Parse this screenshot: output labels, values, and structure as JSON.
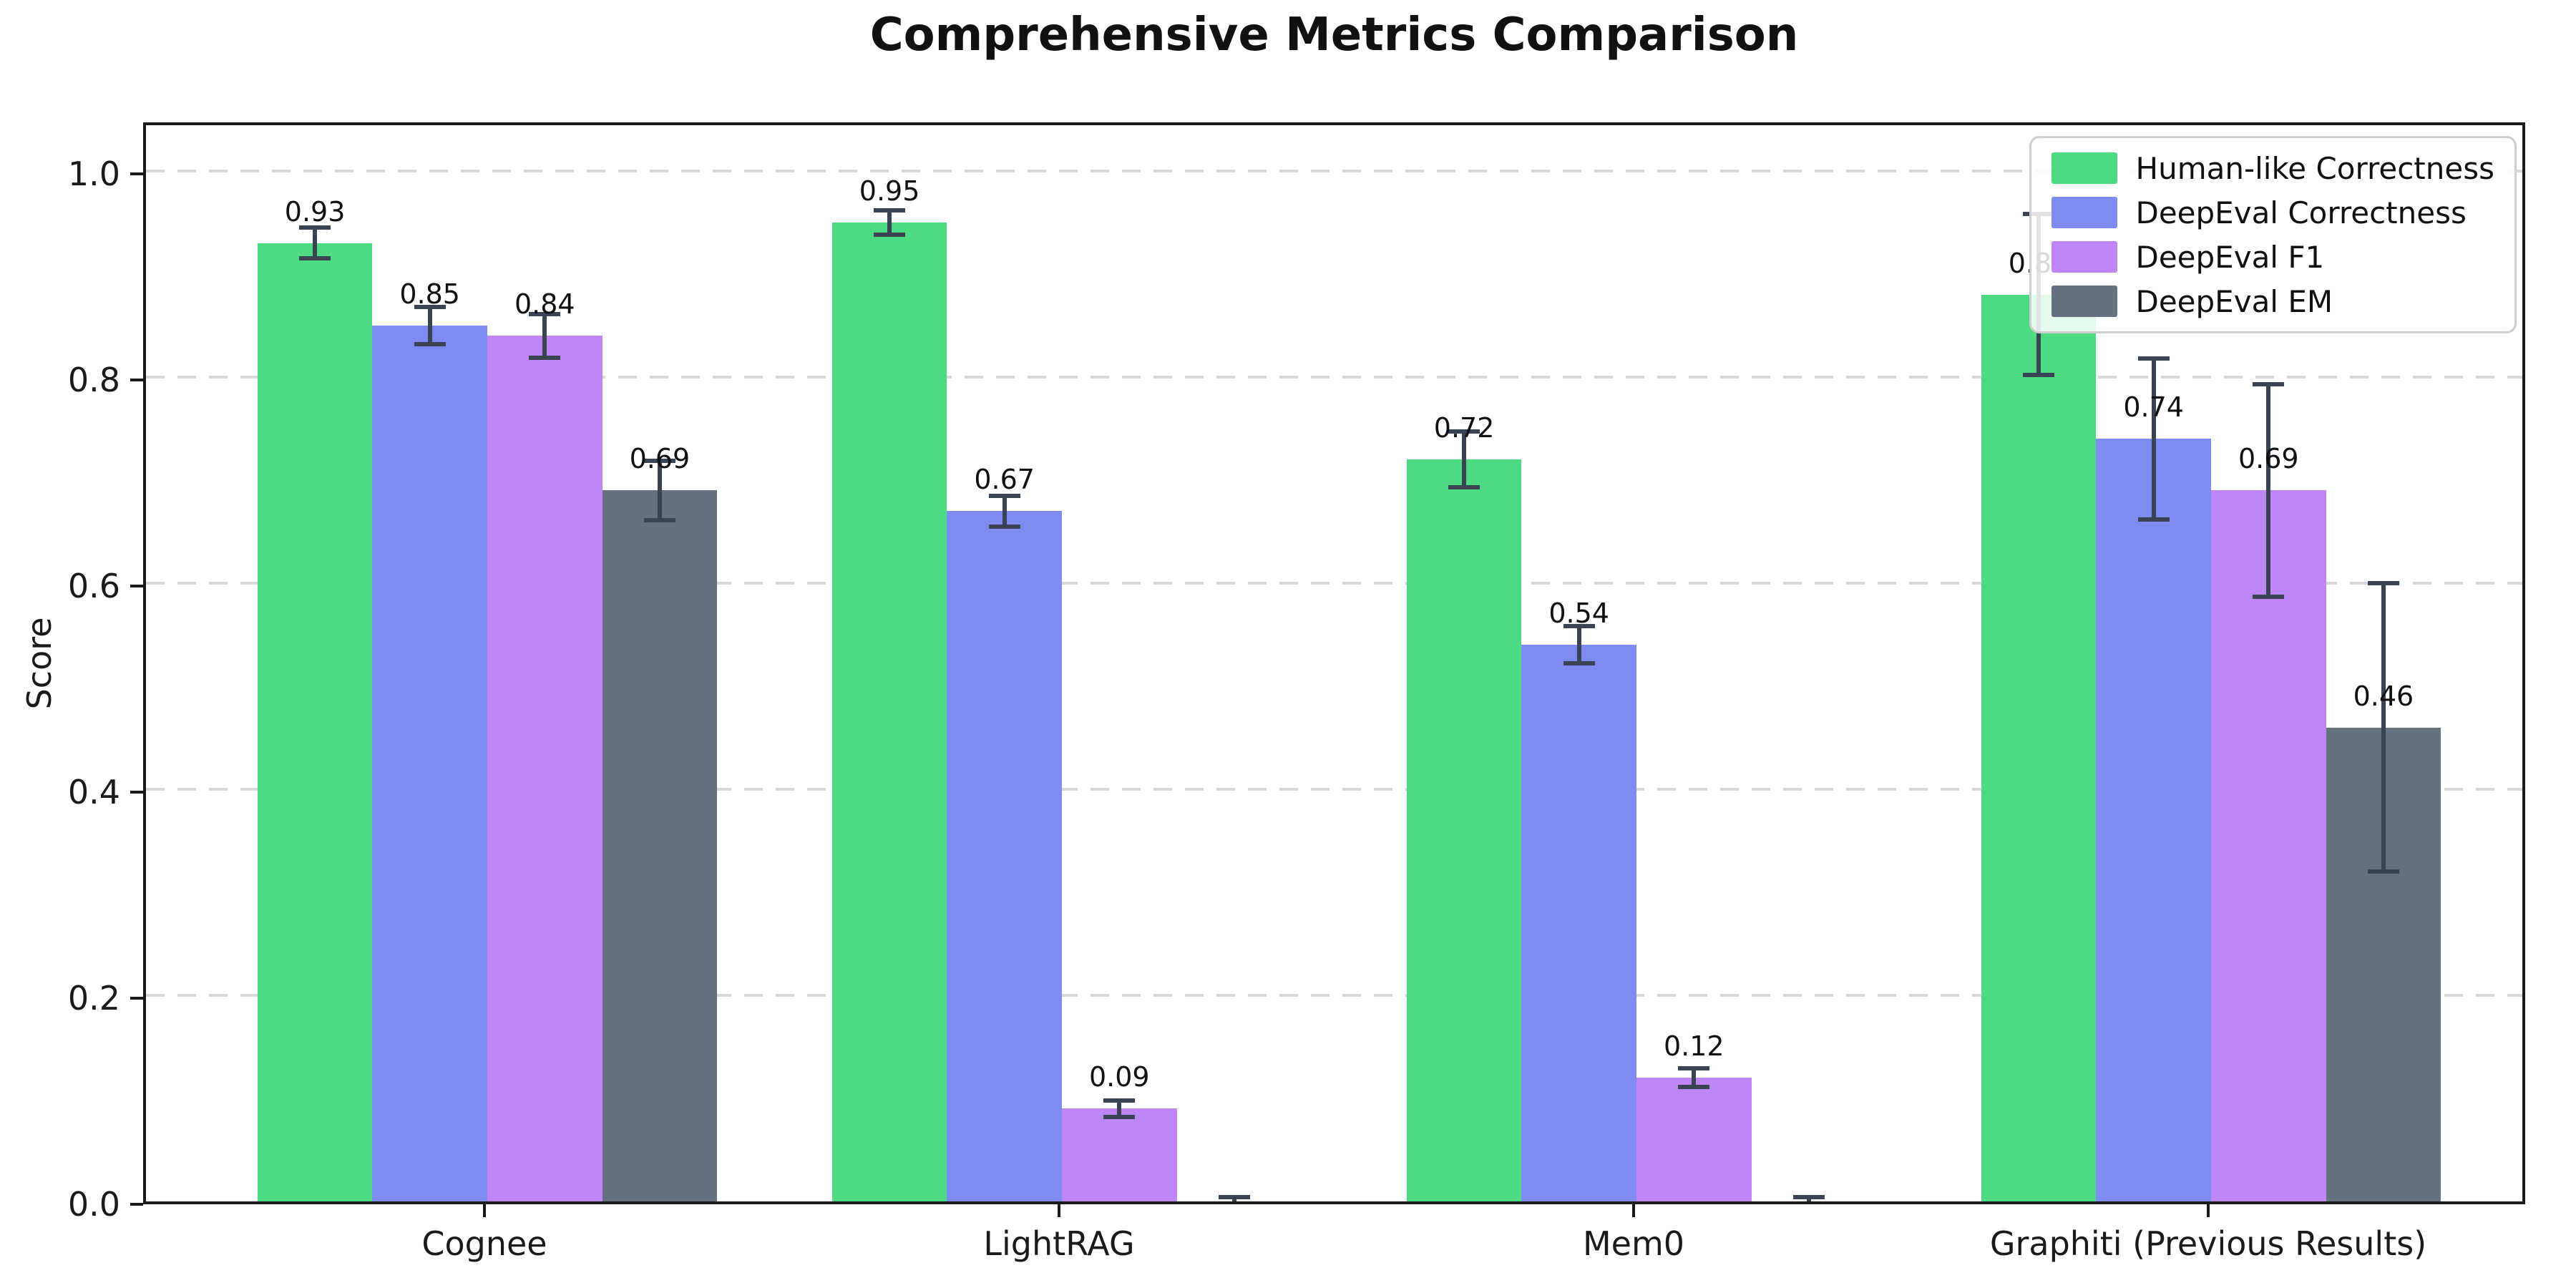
{
  "title": "Comprehensive Metrics Comparison",
  "axes": {
    "ylabel": "Score",
    "y_tick_labels": [
      "0.0",
      "0.2",
      "0.4",
      "0.6",
      "0.8",
      "1.0"
    ],
    "y_tick_values": [
      0.0,
      0.2,
      0.4,
      0.6,
      0.8,
      1.0
    ]
  },
  "colors": {
    "human_like_correctness": "#4cdb82",
    "deepeval_correctness": "#7e8bf2",
    "deepeval_f1": "#bf87f5",
    "deepeval_em": "#66717f",
    "error_bar": "#3a4351",
    "gridline": "#d9d9d9",
    "spine": "#1a1a1a"
  },
  "chart_data": {
    "type": "bar",
    "title": "Comprehensive Metrics Comparison",
    "xlabel": "",
    "ylabel": "Score",
    "ylim": [
      0,
      1.05
    ],
    "grid": "horizontal dashed",
    "legend_position": "upper right",
    "categories": [
      "Cognee",
      "LightRAG",
      "Mem0",
      "Graphiti (Previous Results)"
    ],
    "series": [
      {
        "name": "Human-like Correctness",
        "color": "#4cdb82",
        "values": [
          0.93,
          0.95,
          0.72,
          0.88
        ],
        "errors": [
          0.015,
          0.012,
          0.027,
          0.078
        ],
        "labels": [
          "0.93",
          "0.95",
          "0.72",
          "0.88"
        ]
      },
      {
        "name": "DeepEval Correctness",
        "color": "#7e8bf2",
        "values": [
          0.85,
          0.67,
          0.54,
          0.74
        ],
        "errors": [
          0.018,
          0.015,
          0.018,
          0.078
        ],
        "labels": [
          "0.85",
          "0.67",
          "0.54",
          "0.74"
        ]
      },
      {
        "name": "DeepEval F1",
        "color": "#bf87f5",
        "values": [
          0.84,
          0.09,
          0.12,
          0.69
        ],
        "errors": [
          0.021,
          0.008,
          0.009,
          0.103
        ],
        "labels": [
          "0.84",
          "0.09",
          "0.12",
          "0.69"
        ]
      },
      {
        "name": "DeepEval EM",
        "color": "#66717f",
        "values": [
          0.69,
          0.0,
          0.0,
          0.46
        ],
        "errors": [
          0.029,
          0.004,
          0.004,
          0.14
        ],
        "labels": [
          "0.69",
          "",
          "",
          "0.46"
        ]
      }
    ]
  }
}
